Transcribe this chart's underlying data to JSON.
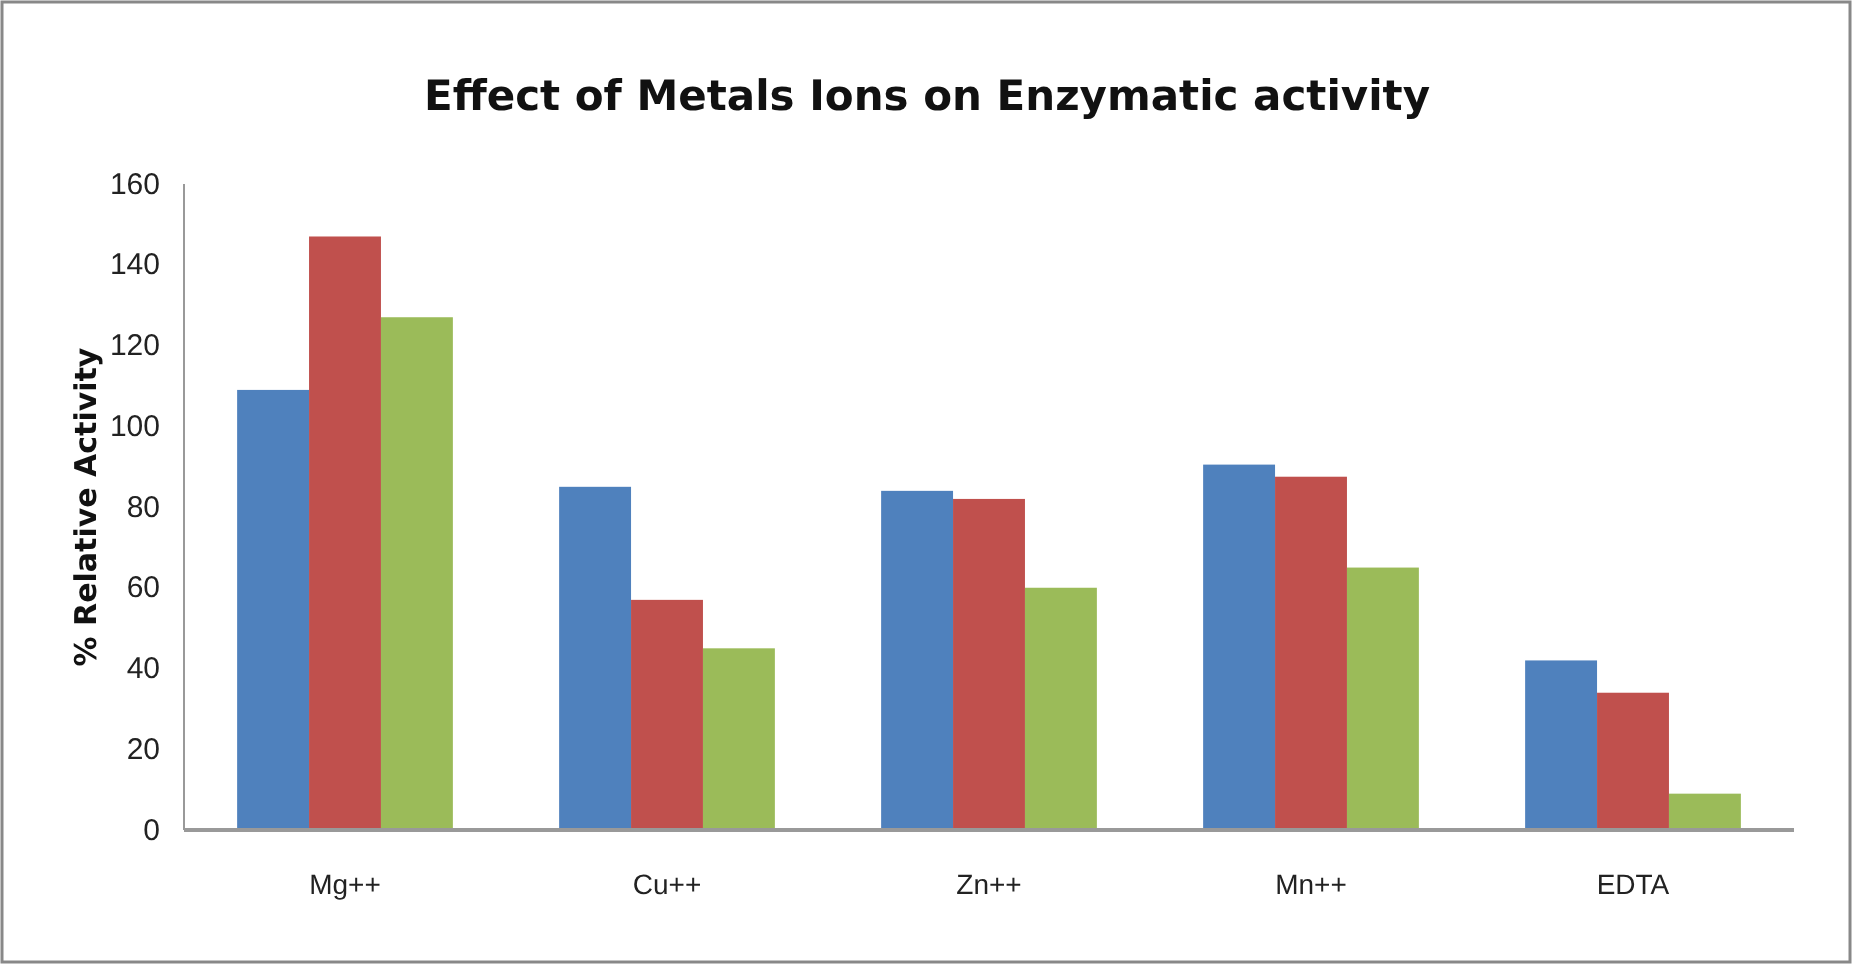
{
  "chart_data": {
    "type": "bar",
    "title": "Effect of Metals Ions on Enzymatic activity",
    "ylabel": "% Relative Activity",
    "categories": [
      "Mg++",
      "Cu++",
      "Zn++",
      "Mn++",
      "EDTA"
    ],
    "series": [
      {
        "color": "#4f81bd",
        "values": [
          109,
          85,
          84,
          90.5,
          42
        ]
      },
      {
        "color": "#c0504d",
        "values": [
          147,
          57,
          82,
          87.5,
          34
        ]
      },
      {
        "color": "#9bbb59",
        "values": [
          127,
          45,
          60,
          65,
          9
        ]
      }
    ],
    "ylim": [
      0,
      160
    ],
    "yticks": [
      0,
      20,
      40,
      60,
      80,
      100,
      120,
      140,
      160
    ],
    "grid": false
  }
}
